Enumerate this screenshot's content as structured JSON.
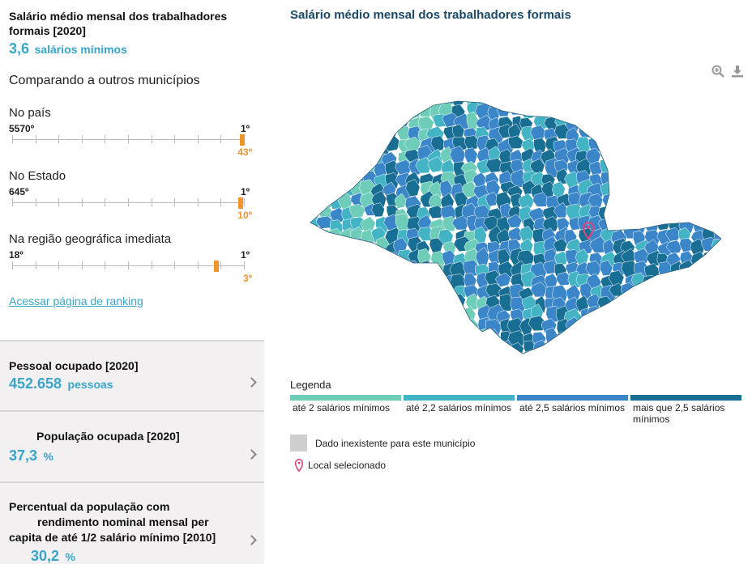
{
  "indicator": {
    "title": "Salário médio mensal dos trabalhadores formais [2020]",
    "value": "3,6",
    "unit": "salários mínimos",
    "comparing_label": "Comparando a outros municípios"
  },
  "rankings": [
    {
      "label": "No país",
      "lowest": "5570º",
      "highest": "1º",
      "position": "43º",
      "position_fraction": 0.992
    },
    {
      "label": "No Estado",
      "lowest": "645º",
      "highest": "1º",
      "position": "10º",
      "position_fraction": 0.986
    },
    {
      "label": "Na região geográfica imediata",
      "lowest": "18º",
      "highest": "1º",
      "position": "3º",
      "position_fraction": 0.88
    }
  ],
  "ranking_link": "Acessar página de ranking",
  "cards": [
    {
      "title": "Pessoal ocupado [2020]",
      "value": "452.658",
      "unit": "pessoas"
    },
    {
      "title": "População ocupada [2020]",
      "value": "37,3",
      "unit": "%"
    },
    {
      "title": "Percentual da população com rendimento nominal mensal per capita de até 1/2 salário mínimo [2010]",
      "title_lines": [
        "Percentual da população com",
        "rendimento nominal mensal per",
        "capita de até 1/2 salário mínimo [2010]"
      ],
      "value": "30,2",
      "unit": "%"
    }
  ],
  "map": {
    "title": "Salário médio mensal dos trabalhadores formais",
    "zoom_icon": "zoom-in-icon",
    "download_icon": "download-icon",
    "legend_title": "Legenda",
    "legend": [
      {
        "label": "até 2 salários mínimos",
        "color": "#6dcdb8"
      },
      {
        "label": "até 2,2 salários mínimos",
        "color": "#43b4c4"
      },
      {
        "label": "até 2,5 salários mínimos",
        "color": "#3a86c8"
      },
      {
        "label": "mais que 2,5 salários mínimos",
        "color": "#186f93"
      }
    ],
    "no_data_label": "Dado inexistente para este município",
    "no_data_color": "#cfcfcf",
    "selected_label": "Local selecionado",
    "selected_color": "#e0457b"
  },
  "colors": {
    "accent": "#39a6c9",
    "rank_marker": "#f0952a",
    "title_dark": "#1a4a68"
  }
}
